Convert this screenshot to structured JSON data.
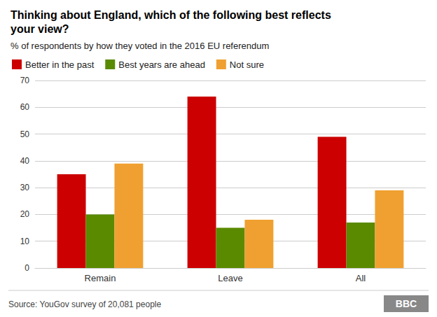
{
  "chart_data": {
    "type": "bar",
    "title": "Thinking about England, which of the following best reflects\nyour view?",
    "subtitle": "% of respondents by how they voted in the 2016 EU referendum",
    "categories": [
      "Remain",
      "Leave",
      "All"
    ],
    "series": [
      {
        "name": "Better in the past",
        "color": "#cc0000",
        "values": [
          35,
          64,
          49
        ]
      },
      {
        "name": "Best years are ahead",
        "color": "#5a8a00",
        "values": [
          20,
          15,
          17
        ]
      },
      {
        "name": "Not sure",
        "color": "#f0a030",
        "values": [
          39,
          18,
          29
        ]
      }
    ],
    "ylim": [
      0,
      70
    ],
    "yticks": [
      0,
      10,
      20,
      30,
      40,
      50,
      60,
      70
    ],
    "grid": true,
    "legend": "upper left",
    "annotations": [
      "Source: YouGov survey of 20,081 people",
      "BBC"
    ]
  }
}
